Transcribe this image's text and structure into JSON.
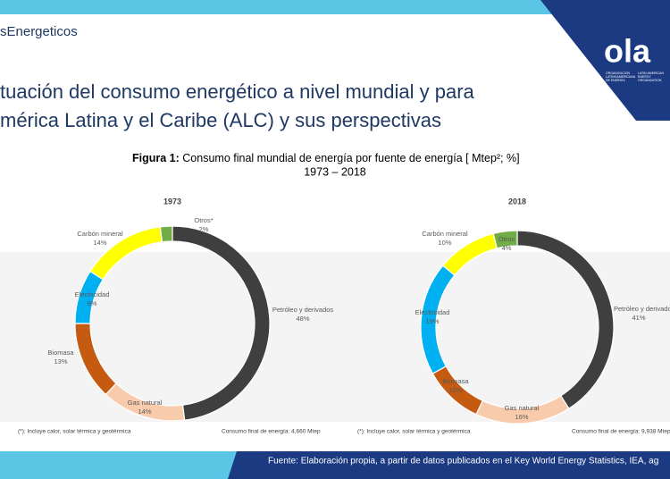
{
  "header": {
    "brand": "sEnergeticos",
    "title_lines": [
      "tuación del consumo energético a nivel mundial y para",
      "mérica Latina y el Caribe (ALC) y sus perspectivas"
    ],
    "logo": {
      "name": "ola",
      "text_es": [
        "ORGANIZACIÓN",
        "LATINOAMERICANA",
        "DE ENERGÍA"
      ],
      "text_en": [
        "LATIN AMERICAN",
        "ENERGY",
        "ORGANIZATION"
      ]
    }
  },
  "figure": {
    "label": "Figura 1:",
    "caption": "Consumo final mundial de energía por fuente de energía [ Mtep²; %]",
    "years": "1973 – 2018"
  },
  "chart_data": [
    {
      "type": "pie",
      "title": "1973",
      "categories": [
        "Petróleo y derivados",
        "Gas natural",
        "Biomasa",
        "Electricidad",
        "Carbón mineral",
        "Otros*"
      ],
      "values": [
        48,
        14,
        13,
        9,
        14,
        2
      ],
      "value_labels": [
        "48%",
        "14%",
        "13%",
        "9%",
        "14%",
        "2%"
      ],
      "colors": [
        "#3f3f3f",
        "#f8cbad",
        "#c55a11",
        "#00b0f0",
        "#ffff00",
        "#70ad47"
      ],
      "note": "(*): Incluye calor, solar térmica y geotérmica",
      "total": "Consumo final de energía: 4,660 Mtep"
    },
    {
      "type": "pie",
      "title": "2018",
      "categories": [
        "Petróleo y derivados",
        "Gas natural",
        "Biomasa",
        "Electricidad",
        "Carbón mineral",
        "Otros"
      ],
      "values": [
        41,
        16,
        10,
        19,
        10,
        4
      ],
      "value_labels": [
        "41%",
        "16%",
        "10%",
        "19%",
        "10%",
        "4%"
      ],
      "colors": [
        "#3f3f3f",
        "#f8cbad",
        "#c55a11",
        "#00b0f0",
        "#ffff00",
        "#70ad47"
      ],
      "note": "(*): Incluye calor, solar térmica y geotérmica",
      "total": "Consumo final de energía: 9,938 Mtep"
    }
  ],
  "source": "Fuente: Elaboración propia, a partir de datos publicados en el Key World Energy Statistics, IEA, ag"
}
